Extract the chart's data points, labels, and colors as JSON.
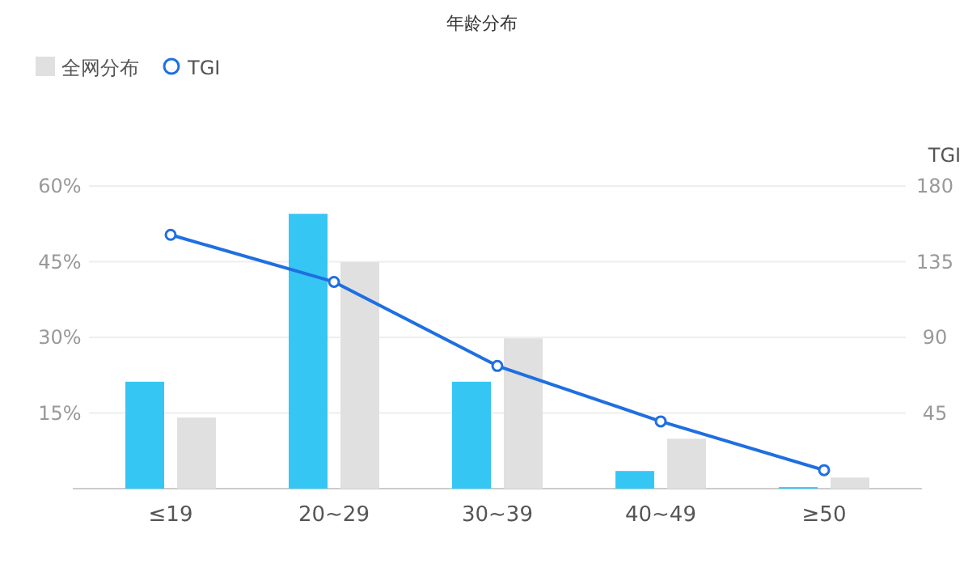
{
  "chart_data": {
    "type": "bar",
    "title": "年龄分布",
    "y2label": "TGI",
    "categories": [
      "≤19",
      "20~29",
      "30~39",
      "40~49",
      "≥50"
    ],
    "series": [
      {
        "color": "#36c6f4",
        "values": [
          21.2,
          54.5,
          21.2,
          3.5,
          0.3
        ]
      },
      {
        "name": "全网分布",
        "color": "#e0e0e0",
        "values": [
          14.1,
          44.9,
          29.8,
          9.9,
          2.2
        ]
      },
      {
        "name": "TGI",
        "type": "line",
        "axis": "y2",
        "color": "#1f6fe0",
        "marker": "circle",
        "values": [
          151,
          123,
          73,
          40,
          11
        ]
      }
    ],
    "ylim": [
      0,
      60
    ],
    "yticks": [
      {
        "value": 15,
        "label": "15%"
      },
      {
        "value": 30,
        "label": "30%"
      },
      {
        "value": 45,
        "label": "45%"
      },
      {
        "value": 60,
        "label": "60%"
      }
    ],
    "y2lim": [
      0,
      180
    ],
    "y2ticks": [
      45,
      90,
      135,
      180
    ],
    "grid": "y",
    "legend": "top left"
  }
}
